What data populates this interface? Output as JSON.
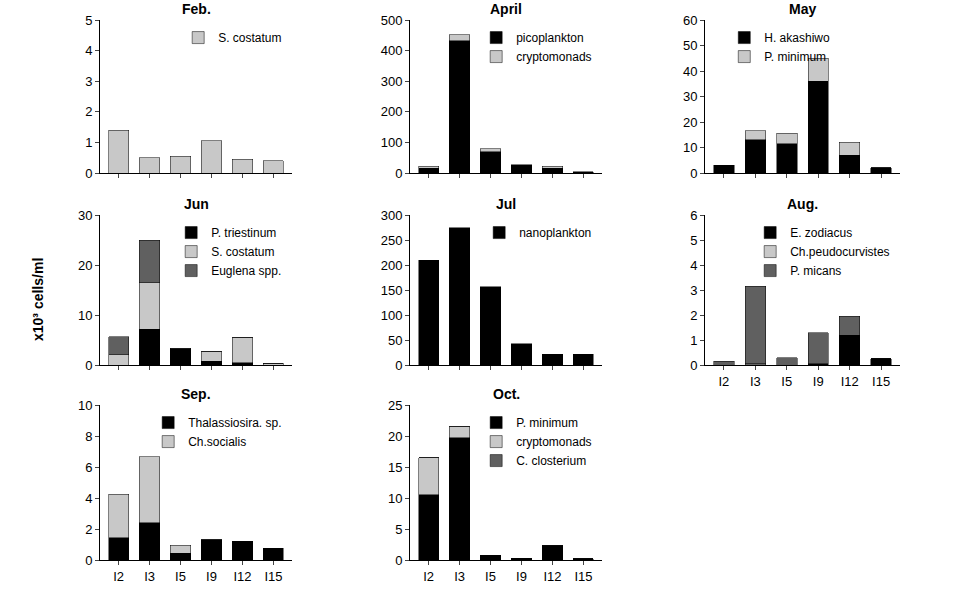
{
  "y_label": "x10³ cells/ml",
  "chart_data": [
    {
      "type": "bar",
      "title": "Feb.",
      "stacked": true,
      "grid": false,
      "legend": "upper right",
      "tick_labels": "y",
      "categories": [
        "I2",
        "I3",
        "I5",
        "I9",
        "I12",
        "I15"
      ],
      "series": [
        {
          "name": "S. costatum",
          "color": "#c8c8c8",
          "values": [
            1.4,
            0.5,
            0.55,
            1.05,
            0.45,
            0.4
          ]
        }
      ],
      "ylim": [
        0,
        5
      ],
      "yticks": [
        0,
        1,
        2,
        3,
        4,
        5
      ]
    },
    {
      "type": "bar",
      "title": "April",
      "stacked": true,
      "grid": false,
      "legend": "upper right",
      "tick_labels": "y",
      "categories": [
        "I2",
        "I3",
        "I5",
        "I9",
        "I12",
        "I15"
      ],
      "series": [
        {
          "name": "picoplankton",
          "color": "#000000",
          "values": [
            15,
            432,
            70,
            25,
            15,
            3
          ]
        },
        {
          "name": "cryptomonads",
          "color": "#c8c8c8",
          "values": [
            7,
            20,
            10,
            2,
            7,
            1
          ]
        }
      ],
      "ylim": [
        0,
        500
      ],
      "yticks": [
        0,
        100,
        200,
        300,
        400,
        500
      ]
    },
    {
      "type": "bar",
      "title": "May",
      "stacked": true,
      "grid": false,
      "legend": "upper left",
      "tick_labels": "y",
      "categories": [
        "I2",
        "I3",
        "I5",
        "I9",
        "I12",
        "I15"
      ],
      "series": [
        {
          "name": "H. akashiwo",
          "color": "#000000",
          "values": [
            3,
            13,
            11.5,
            36,
            7,
            2
          ]
        },
        {
          "name": "P. minimum",
          "color": "#c8c8c8",
          "values": [
            0,
            3.5,
            4,
            9,
            5,
            0
          ]
        }
      ],
      "ylim": [
        0,
        60
      ],
      "yticks": [
        0,
        10,
        20,
        30,
        40,
        50,
        60
      ]
    },
    {
      "type": "bar",
      "title": "Jun",
      "stacked": true,
      "grid": false,
      "legend": "upper right",
      "tick_labels": "y",
      "categories": [
        "I2",
        "I3",
        "I5",
        "I9",
        "I12",
        "I15"
      ],
      "series": [
        {
          "name": "P. triestinum",
          "color": "#000000",
          "values": [
            0,
            7.2,
            3.2,
            0.8,
            0.5,
            0
          ]
        },
        {
          "name": "S. costatum",
          "color": "#c8c8c8",
          "values": [
            2.2,
            9.4,
            0.2,
            1.9,
            5,
            0.4
          ]
        },
        {
          "name": "Euglena spp.",
          "color": "#606060",
          "values": [
            3.5,
            8.4,
            0,
            0,
            0,
            0
          ]
        }
      ],
      "ylim": [
        0,
        30
      ],
      "yticks": [
        0,
        10,
        20,
        30
      ]
    },
    {
      "type": "bar",
      "title": "Jul",
      "stacked": true,
      "grid": false,
      "legend": "upper right",
      "tick_labels": "y",
      "categories": [
        "I2",
        "I3",
        "I5",
        "I9",
        "I12",
        "I15"
      ],
      "series": [
        {
          "name": "nanoplankton",
          "color": "#000000",
          "values": [
            210,
            275,
            157,
            43,
            22,
            22
          ]
        }
      ],
      "ylim": [
        0,
        300
      ],
      "yticks": [
        0,
        50,
        100,
        150,
        200,
        250,
        300
      ]
    },
    {
      "type": "bar",
      "title": "Aug.",
      "stacked": true,
      "grid": false,
      "legend": "upper right",
      "categories": [
        "I2",
        "I3",
        "I5",
        "I9",
        "I12",
        "I15"
      ],
      "series": [
        {
          "name": "E. zodiacus",
          "color": "#000000",
          "values": [
            0,
            0.02,
            0,
            0.05,
            1.2,
            0.25
          ]
        },
        {
          "name": "Ch.peudocurvistes",
          "color": "#c8c8c8",
          "values": [
            0,
            0.03,
            0,
            0,
            0,
            0
          ]
        },
        {
          "name": "P. micans",
          "color": "#606060",
          "values": [
            0.15,
            3.1,
            0.3,
            1.25,
            0.75,
            0
          ]
        }
      ],
      "ylim": [
        0,
        6
      ],
      "yticks": [
        0,
        1,
        2,
        3,
        4,
        5,
        6
      ]
    },
    {
      "type": "bar",
      "title": "Sep.",
      "stacked": true,
      "grid": false,
      "legend": "upper right",
      "categories": [
        "I2",
        "I3",
        "I5",
        "I9",
        "I12",
        "I15"
      ],
      "series": [
        {
          "name": "Thalassiosira. sp.",
          "color": "#000000",
          "values": [
            1.45,
            2.4,
            0.45,
            1.3,
            1.2,
            0.75
          ]
        },
        {
          "name": "Ch.socialis",
          "color": "#c8c8c8",
          "values": [
            2.8,
            4.25,
            0.5,
            0,
            0,
            0
          ]
        }
      ],
      "ylim": [
        0,
        10
      ],
      "yticks": [
        0,
        2,
        4,
        6,
        8,
        10
      ]
    },
    {
      "type": "bar",
      "title": "Oct.",
      "stacked": true,
      "grid": false,
      "legend": "upper right",
      "categories": [
        "I2",
        "I3",
        "I5",
        "I9",
        "I12",
        "I15"
      ],
      "series": [
        {
          "name": "P. minimum",
          "color": "#000000",
          "values": [
            10.5,
            19.7,
            0.8,
            0.3,
            2.3,
            0.2
          ]
        },
        {
          "name": "cryptomonads",
          "color": "#c8c8c8",
          "values": [
            6,
            1.8,
            0,
            0,
            0,
            0
          ]
        },
        {
          "name": "C. closterium",
          "color": "#606060",
          "values": [
            0,
            0,
            0,
            0,
            0,
            0
          ]
        }
      ],
      "ylim": [
        0,
        25
      ],
      "yticks": [
        0,
        5,
        10,
        15,
        20,
        25
      ]
    }
  ]
}
